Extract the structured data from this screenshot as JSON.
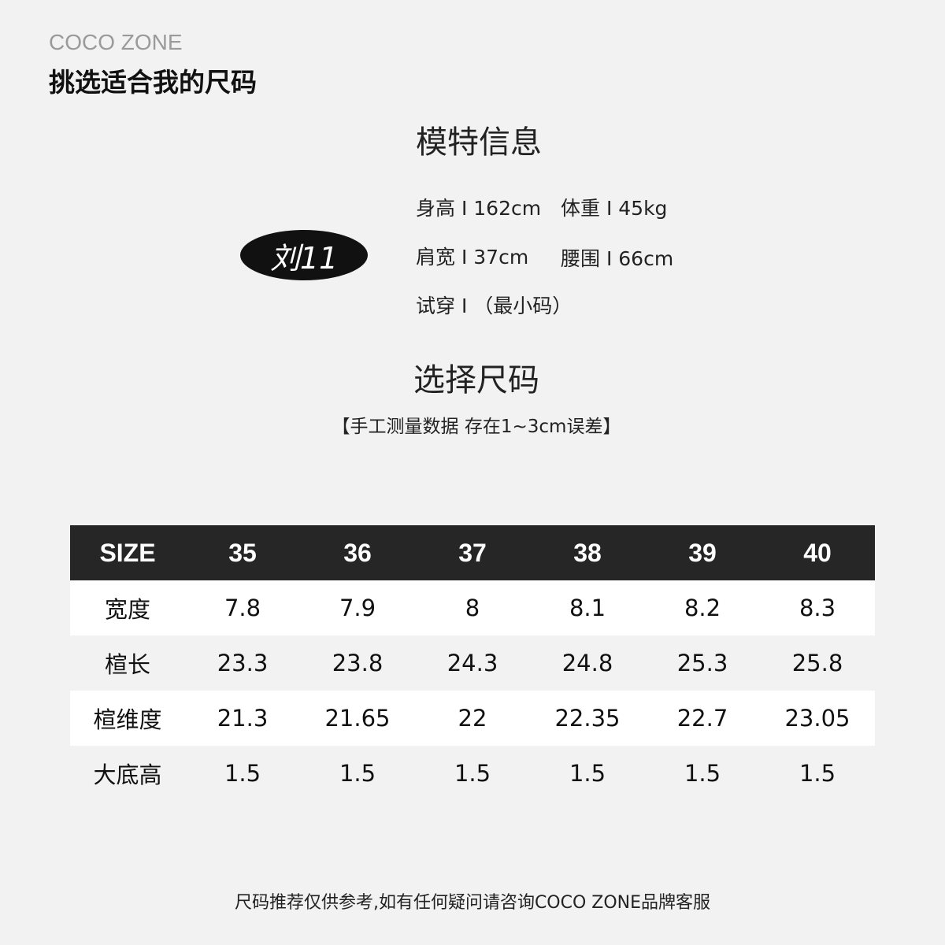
{
  "header": {
    "brand": "COCO ZONE",
    "title": "挑选适合我的尺码"
  },
  "model": {
    "section_title": "模特信息",
    "name": "刘11",
    "height": "身高 I 162cm",
    "weight": "体重 I 45kg",
    "shoulder": "肩宽 I 37cm",
    "waist": "腰围 I 66cm",
    "tried": "试穿 I （最小码）"
  },
  "size_section": {
    "title": "选择尺码",
    "note": "【手工测量数据 存在1~3cm误差】"
  },
  "table": {
    "headers": [
      "SIZE",
      "35",
      "36",
      "37",
      "38",
      "39",
      "40"
    ],
    "rows": [
      [
        "宽度",
        "7.8",
        "7.9",
        "8",
        "8.1",
        "8.2",
        "8.3"
      ],
      [
        "楦长",
        "23.3",
        "23.8",
        "24.3",
        "24.8",
        "25.3",
        "25.8"
      ],
      [
        "楦维度",
        "21.3",
        "21.65",
        "22",
        "22.35",
        "22.7",
        "23.05"
      ],
      [
        "大底高",
        "1.5",
        "1.5",
        "1.5",
        "1.5",
        "1.5",
        "1.5"
      ]
    ]
  },
  "footer": "尺码推荐仅供参考,如有任何疑问请咨询COCO ZONE品牌客服"
}
